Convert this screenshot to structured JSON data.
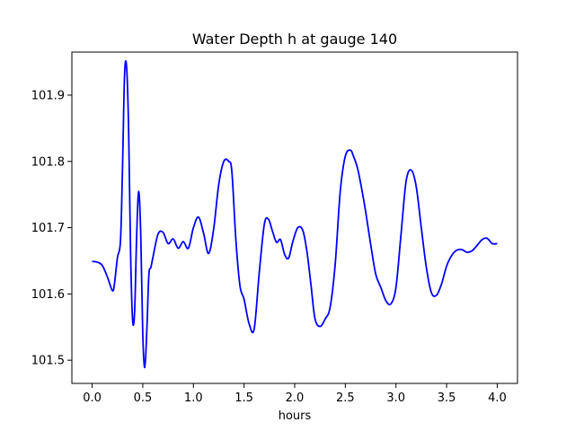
{
  "chart_data": {
    "type": "line",
    "title": "Water Depth h at gauge 140",
    "xlabel": "hours",
    "ylabel": "",
    "xlim": [
      -0.2,
      4.2
    ],
    "ylim": [
      101.465,
      101.965
    ],
    "x_ticks": [
      0.0,
      0.5,
      1.0,
      1.5,
      2.0,
      2.5,
      3.0,
      3.5,
      4.0
    ],
    "x_tick_labels": [
      "0.0",
      "0.5",
      "1.0",
      "1.5",
      "2.0",
      "2.5",
      "3.0",
      "3.5",
      "4.0"
    ],
    "y_ticks": [
      101.5,
      101.6,
      101.7,
      101.8,
      101.9
    ],
    "y_tick_labels": [
      "101.5",
      "101.6",
      "101.7",
      "101.8",
      "101.9"
    ],
    "grid": false,
    "legend": "none",
    "series": [
      {
        "color": "#0000ff",
        "x": [
          0.0,
          0.05,
          0.1,
          0.15,
          0.2,
          0.22,
          0.25,
          0.28,
          0.3,
          0.32,
          0.34,
          0.36,
          0.38,
          0.4,
          0.42,
          0.44,
          0.46,
          0.48,
          0.5,
          0.52,
          0.54,
          0.56,
          0.58,
          0.6,
          0.65,
          0.7,
          0.75,
          0.8,
          0.85,
          0.9,
          0.95,
          1.0,
          1.05,
          1.1,
          1.15,
          1.2,
          1.25,
          1.3,
          1.35,
          1.38,
          1.42,
          1.46,
          1.5,
          1.55,
          1.6,
          1.65,
          1.7,
          1.74,
          1.78,
          1.82,
          1.86,
          1.9,
          1.94,
          1.98,
          2.03,
          2.08,
          2.12,
          2.16,
          2.2,
          2.25,
          2.3,
          2.35,
          2.4,
          2.45,
          2.5,
          2.55,
          2.58,
          2.62,
          2.66,
          2.7,
          2.75,
          2.8,
          2.85,
          2.9,
          2.95,
          3.0,
          3.05,
          3.1,
          3.15,
          3.2,
          3.25,
          3.3,
          3.35,
          3.4,
          3.45,
          3.5,
          3.55,
          3.6,
          3.65,
          3.7,
          3.75,
          3.8,
          3.85,
          3.9,
          3.95,
          4.0
        ],
        "y": [
          101.649,
          101.648,
          101.643,
          101.626,
          101.605,
          101.615,
          101.655,
          101.68,
          101.79,
          101.93,
          101.943,
          101.85,
          101.66,
          101.56,
          101.575,
          101.69,
          101.755,
          101.69,
          101.54,
          101.489,
          101.545,
          101.628,
          101.64,
          101.655,
          101.69,
          101.693,
          101.676,
          101.683,
          101.669,
          101.679,
          101.669,
          101.7,
          101.716,
          101.692,
          101.661,
          101.698,
          101.765,
          101.8,
          101.8,
          101.784,
          101.68,
          101.612,
          101.592,
          101.555,
          101.547,
          101.632,
          101.705,
          101.713,
          101.695,
          101.678,
          101.682,
          101.66,
          101.654,
          101.678,
          101.7,
          101.696,
          101.665,
          101.615,
          101.563,
          101.551,
          101.562,
          101.58,
          101.645,
          101.755,
          101.808,
          101.817,
          101.808,
          101.79,
          101.76,
          101.725,
          101.675,
          101.63,
          101.61,
          101.59,
          101.585,
          101.61,
          101.69,
          101.77,
          101.787,
          101.762,
          101.7,
          101.64,
          101.602,
          101.598,
          101.615,
          101.642,
          101.658,
          101.666,
          101.667,
          101.663,
          101.665,
          101.673,
          101.682,
          101.684,
          101.676,
          101.676
        ]
      }
    ]
  }
}
